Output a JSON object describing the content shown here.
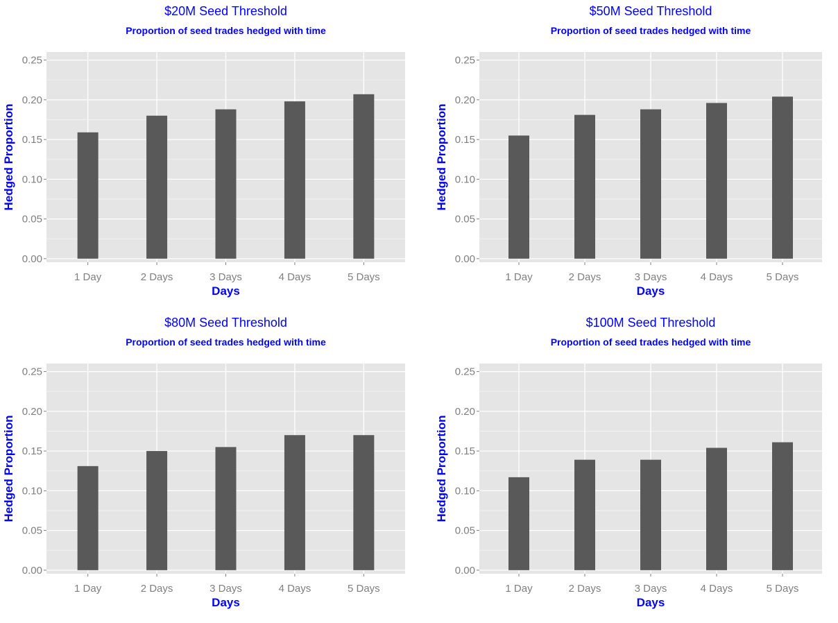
{
  "colors": {
    "title": "#0000ff",
    "axis_title": "#0000ff",
    "panel_bg": "#e5e5e5",
    "grid_major": "#ffffff",
    "grid_minor": "#f2f2f2",
    "bar": "#595959",
    "tick_text": "#7f7f7f"
  },
  "chart_data": [
    {
      "type": "bar",
      "title": "$20M Seed Threshold",
      "subtitle": "Proportion of seed trades hedged with time",
      "xlabel": "Days",
      "ylabel": "Hedged Proportion",
      "categories": [
        "1 Day",
        "2 Days",
        "3 Days",
        "4 Days",
        "5 Days"
      ],
      "values": [
        0.159,
        0.18,
        0.188,
        0.198,
        0.207
      ],
      "ylim": [
        0,
        0.25
      ],
      "yticks": [
        "0.00",
        "0.05",
        "0.10",
        "0.15",
        "0.20",
        "0.25"
      ],
      "grid": true,
      "legend": "none"
    },
    {
      "type": "bar",
      "title": "$50M Seed Threshold",
      "subtitle": "Proportion of seed trades hedged with time",
      "xlabel": "Days",
      "ylabel": "Hedged Proportion",
      "categories": [
        "1 Day",
        "2 Days",
        "3 Days",
        "4 Days",
        "5 Days"
      ],
      "values": [
        0.155,
        0.181,
        0.188,
        0.196,
        0.204
      ],
      "ylim": [
        0,
        0.25
      ],
      "yticks": [
        "0.00",
        "0.05",
        "0.10",
        "0.15",
        "0.20",
        "0.25"
      ],
      "grid": true,
      "legend": "none"
    },
    {
      "type": "bar",
      "title": "$80M Seed Threshold",
      "subtitle": "Proportion of seed trades hedged with time",
      "xlabel": "Days",
      "ylabel": "Hedged Proportion",
      "categories": [
        "1 Day",
        "2 Days",
        "3 Days",
        "4 Days",
        "5 Days"
      ],
      "values": [
        0.131,
        0.15,
        0.155,
        0.17,
        0.17
      ],
      "ylim": [
        0,
        0.25
      ],
      "yticks": [
        "0.00",
        "0.05",
        "0.10",
        "0.15",
        "0.20",
        "0.25"
      ],
      "grid": true,
      "legend": "none"
    },
    {
      "type": "bar",
      "title": "$100M Seed Threshold",
      "subtitle": "Proportion of seed trades hedged with time",
      "xlabel": "Days",
      "ylabel": "Hedged Proportion",
      "categories": [
        "1 Day",
        "2 Days",
        "3 Days",
        "4 Days",
        "5 Days"
      ],
      "values": [
        0.117,
        0.139,
        0.139,
        0.154,
        0.161
      ],
      "ylim": [
        0,
        0.25
      ],
      "yticks": [
        "0.00",
        "0.05",
        "0.10",
        "0.15",
        "0.20",
        "0.25"
      ],
      "grid": true,
      "legend": "none"
    }
  ]
}
